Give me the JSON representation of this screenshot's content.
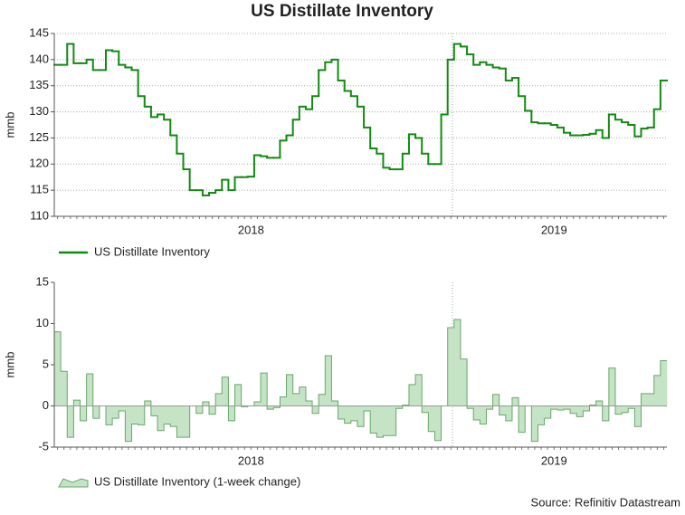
{
  "title": "US Distillate Inventory",
  "source": "Source: Refinitiv Datastream",
  "chart_data": [
    {
      "type": "step",
      "ylabel": "mmb",
      "legend": "US Distillate Inventory",
      "color": "#128a12",
      "grid": true,
      "ylim": [
        110,
        145
      ],
      "yticks": [
        110,
        115,
        120,
        125,
        130,
        135,
        140,
        145
      ],
      "categories": [
        null,
        null,
        null,
        null,
        null,
        null,
        null,
        null,
        null,
        null,
        null,
        null,
        null,
        null,
        null,
        null,
        null,
        null,
        null,
        null,
        null,
        null,
        null,
        null,
        null,
        null,
        null,
        null,
        null,
        null,
        "2018",
        null,
        null,
        null,
        null,
        null,
        null,
        null,
        null,
        null,
        null,
        null,
        null,
        null,
        null,
        null,
        null,
        null,
        null,
        null,
        null,
        null,
        null,
        null,
        null,
        null,
        null,
        null,
        null,
        null,
        null,
        null,
        null,
        null,
        null,
        null,
        null,
        null,
        null,
        null,
        null,
        null,
        null,
        null,
        null,
        null,
        null,
        "2019",
        null,
        null,
        null,
        null,
        null,
        null,
        null,
        null,
        null,
        null,
        null,
        null,
        null,
        null,
        null,
        null,
        null
      ],
      "values": [
        139,
        139,
        143,
        139.3,
        139.3,
        140,
        138,
        138,
        141.8,
        141.6,
        139,
        138.5,
        138,
        133,
        131,
        129,
        129.5,
        128.5,
        125.5,
        122,
        119,
        115,
        115,
        114,
        114.5,
        115,
        117,
        115,
        117.5,
        117.5,
        117.6,
        121.7,
        121.5,
        121.2,
        121.2,
        124.5,
        125.5,
        128.5,
        131,
        130.5,
        133,
        138,
        139.5,
        140,
        136,
        134,
        133,
        131,
        127,
        123,
        122,
        119.3,
        119,
        119,
        122,
        125.7,
        125,
        122,
        120,
        120,
        129.5,
        140,
        143,
        142.5,
        141,
        139,
        139.5,
        139,
        138.5,
        138.3,
        136,
        136.5,
        133,
        130.2,
        128,
        127.8,
        127.8,
        127.5,
        127,
        126,
        125.5,
        125.5,
        125.6,
        125.8,
        126.5,
        125,
        129.5,
        128.5,
        128,
        127.5,
        125.3,
        126.8,
        127,
        130.5,
        136
      ]
    },
    {
      "type": "step-area",
      "ylabel": "mmb",
      "legend": "US Distillate Inventory (1-week change)",
      "color": "#c5e3c5",
      "grid": false,
      "ylim": [
        -5,
        15
      ],
      "yticks": [
        -5,
        0,
        5,
        10,
        15
      ],
      "categories": [
        null,
        null,
        null,
        null,
        null,
        null,
        null,
        null,
        null,
        null,
        null,
        null,
        null,
        null,
        null,
        null,
        null,
        null,
        null,
        null,
        null,
        null,
        null,
        null,
        null,
        null,
        null,
        null,
        null,
        null,
        "2018",
        null,
        null,
        null,
        null,
        null,
        null,
        null,
        null,
        null,
        null,
        null,
        null,
        null,
        null,
        null,
        null,
        null,
        null,
        null,
        null,
        null,
        null,
        null,
        null,
        null,
        null,
        null,
        null,
        null,
        null,
        null,
        null,
        null,
        null,
        null,
        null,
        null,
        null,
        null,
        null,
        null,
        null,
        null,
        null,
        null,
        null,
        "2019",
        null,
        null,
        null,
        null,
        null,
        null,
        null,
        null,
        null,
        null,
        null,
        null,
        null,
        null,
        null,
        null,
        null
      ],
      "values": [
        9,
        4.2,
        -3.8,
        0.7,
        -1.8,
        3.9,
        -1.5,
        0,
        -2.3,
        -1.5,
        -0.6,
        -4.3,
        -2.2,
        -2.3,
        0.6,
        -1.2,
        -3,
        -2.2,
        -2.5,
        -3.8,
        -3.8,
        0,
        -0.9,
        0.5,
        -1,
        1.5,
        3.5,
        -1.8,
        2.6,
        -0.1,
        0,
        0.5,
        4,
        -0.4,
        -0.2,
        1.1,
        3.8,
        1.5,
        2.3,
        0.6,
        -0.9,
        1.4,
        6.1,
        0.6,
        -1.6,
        -2.1,
        -1.8,
        -2.5,
        -0.6,
        -3.3,
        -3.8,
        -3.6,
        -3.6,
        -0.3,
        0.1,
        2.6,
        3.8,
        -0.8,
        -3.1,
        -4.2,
        0,
        9.5,
        10.5,
        5.7,
        -0.3,
        -1.7,
        -2.2,
        -0.4,
        1.4,
        -1.1,
        -1.8,
        1,
        -3.2,
        0,
        -4.3,
        -2.3,
        -1.5,
        -0.4,
        -0.5,
        -0.4,
        -0.9,
        -1.3,
        -0.6,
        0.1,
        0.6,
        -1.8,
        4.6,
        -1,
        -0.8,
        -0.3,
        -2.5,
        1.5,
        1.5,
        3.7,
        5.5
      ]
    }
  ]
}
